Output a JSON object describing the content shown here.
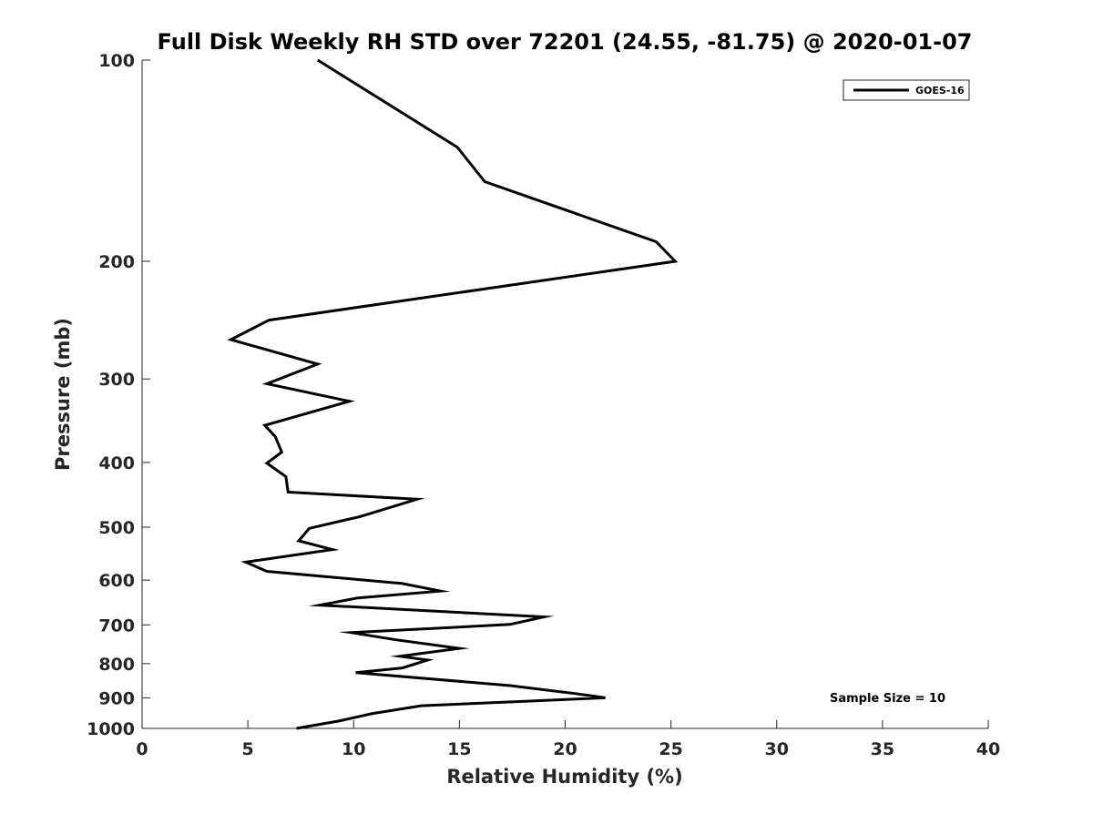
{
  "chart_data": {
    "type": "line",
    "title": "Full Disk Weekly RH STD over 72201 (24.55, -81.75) @ 2020-01-07",
    "xlabel": "Relative Humidity (%)",
    "ylabel": "Pressure (mb)",
    "xlim": [
      0,
      40
    ],
    "ylim": [
      100,
      1000
    ],
    "yscale": "log",
    "y_reversed": true,
    "grid": false,
    "legend_position": "top-right",
    "xticks": [
      0,
      5,
      10,
      15,
      20,
      25,
      30,
      35,
      40
    ],
    "xtick_labels": [
      "0",
      "5",
      "10",
      "15",
      "20",
      "25",
      "30",
      "35",
      "40"
    ],
    "yticks": [
      100,
      200,
      300,
      400,
      500,
      600,
      700,
      800,
      900,
      1000
    ],
    "ytick_labels": [
      "100",
      "200",
      "300",
      "400",
      "500",
      "600",
      "700",
      "800",
      "900",
      "1000"
    ],
    "series": [
      {
        "name": "GOES-16",
        "color": "#000000",
        "x": [
          7.3,
          9.3,
          10.9,
          13.2,
          17.7,
          21.9,
          20.5,
          17.4,
          10.1,
          12.3,
          13.5,
          12.2,
          15.0,
          12.0,
          9.9,
          17.4,
          19.0,
          8.4,
          10.2,
          14.1,
          12.3,
          5.9,
          4.9,
          9.0,
          7.4,
          7.9,
          10.3,
          13.0,
          6.9,
          6.8,
          5.9,
          6.6,
          6.3,
          5.8,
          9.8,
          5.9,
          8.3,
          4.2,
          6.0,
          25.2,
          24.3,
          16.2,
          14.9,
          8.3
        ],
        "y": [
          1000,
          975,
          950,
          925,
          912,
          900,
          887,
          863,
          825,
          812,
          790,
          780,
          759,
          737,
          719,
          699,
          681,
          654,
          638,
          623,
          607,
          582,
          564,
          540,
          524,
          502,
          482,
          454,
          443,
          420,
          401,
          386,
          366,
          352,
          324,
          305,
          285,
          262,
          245,
          200,
          187,
          152,
          135,
          100
        ]
      }
    ],
    "annotations": [
      "Sample Size = 10"
    ]
  }
}
